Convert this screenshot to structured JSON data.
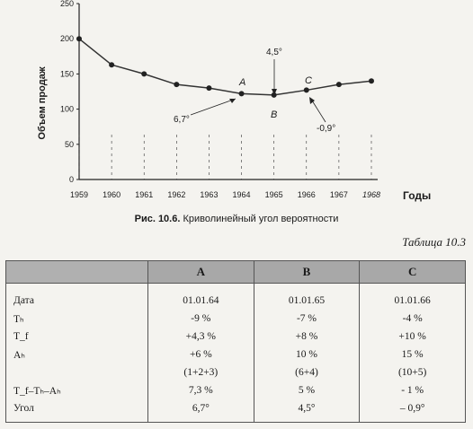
{
  "chart_data": {
    "type": "line",
    "xlabel": "Годы",
    "ylabel": "Объем продаж",
    "x": [
      "1959",
      "1960",
      "1961",
      "1962",
      "1963",
      "1964",
      "1965",
      "1966",
      "1967",
      "1968"
    ],
    "y": [
      200,
      163,
      150,
      135,
      130,
      122,
      120,
      127,
      135,
      140
    ],
    "yticks": [
      "0",
      "50",
      "100",
      "150",
      "200",
      "250"
    ],
    "ylim": [
      0,
      250
    ],
    "annotations": [
      {
        "label": "A",
        "x": "1964"
      },
      {
        "label": "B",
        "x": "1965"
      },
      {
        "label": "C",
        "x": "1966"
      },
      {
        "label": "6,7°",
        "x": "1964"
      },
      {
        "label": "4,5°",
        "x": "1965"
      },
      {
        "label": "-0,9°",
        "x": "1966"
      }
    ]
  },
  "figure": {
    "caption_bold": "Рис. 10.6.",
    "caption_text": "Криволинейный угол вероятности"
  },
  "table": {
    "label": "Таблица 10.3",
    "headers": [
      "",
      "A",
      "B",
      "C"
    ],
    "rows": [
      [
        "Дата",
        "01.01.64",
        "01.01.65",
        "01.01.66"
      ],
      [
        "Tₕ",
        "-9 %",
        "-7 %",
        "-4 %"
      ],
      [
        "T_f",
        "+4,3 %",
        "+8 %",
        "+10 %"
      ],
      [
        "Aₕ",
        "+6 %",
        "10 %",
        "15 %"
      ],
      [
        "",
        "(1+2+3)",
        "(6+4)",
        "(10+5)"
      ],
      [
        "T_f–Tₕ–Aₕ",
        "7,3 %",
        "5 %",
        "- 1 %"
      ],
      [
        "Угол",
        "6,7°",
        "4,5°",
        "– 0,9°"
      ]
    ]
  }
}
